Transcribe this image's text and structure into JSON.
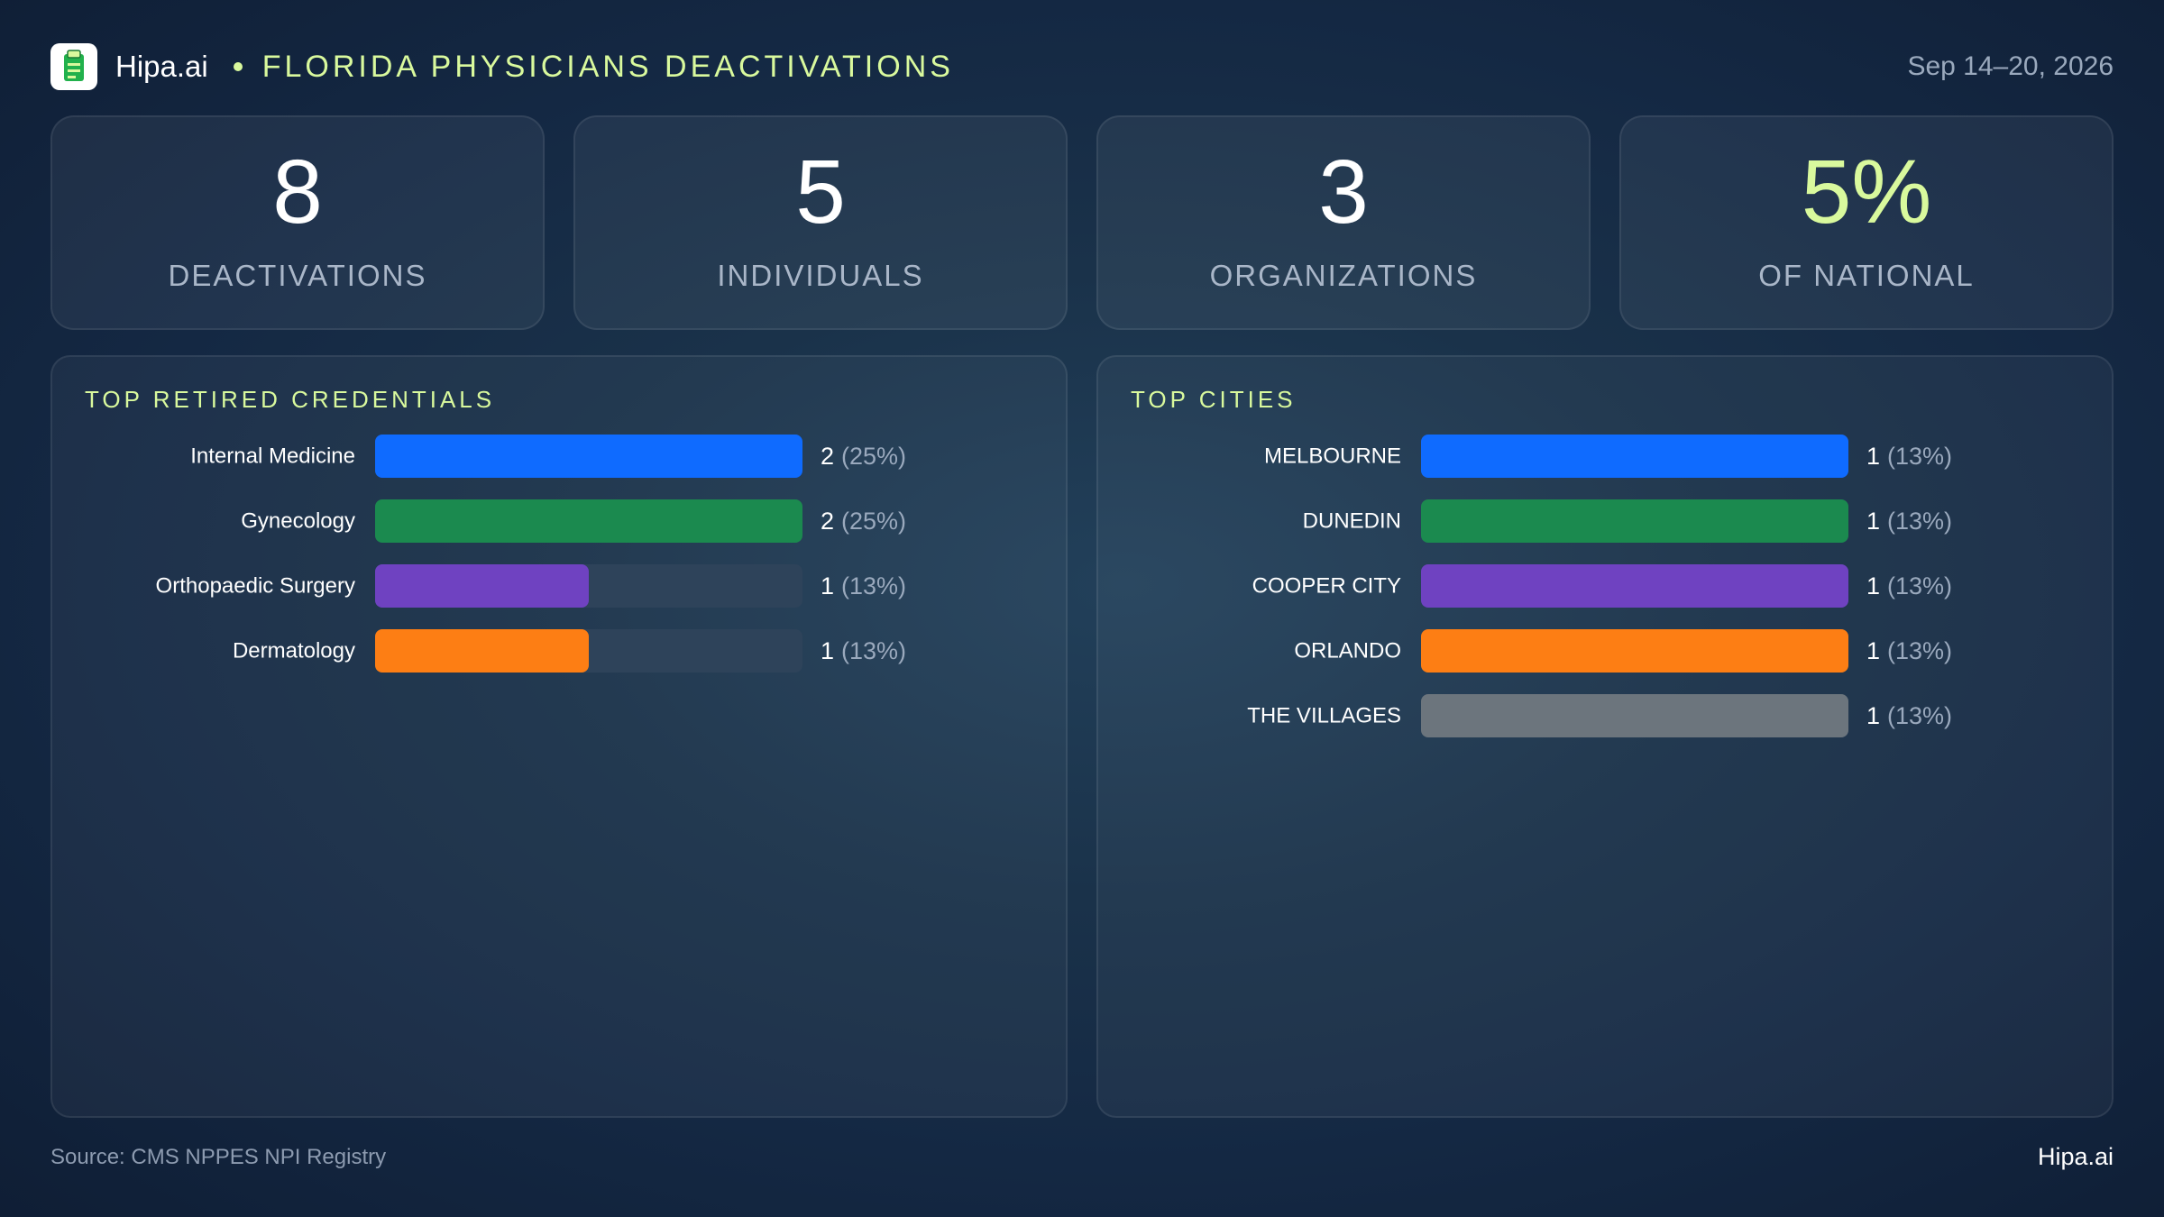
{
  "header": {
    "brand": "Hipa.ai",
    "title": "FLORIDA PHYSICIANS DEACTIVATIONS",
    "date_range": "Sep 14–20, 2026",
    "logo_icon": "clipboard-icon"
  },
  "stats": [
    {
      "value": "8",
      "label": "DEACTIVATIONS"
    },
    {
      "value": "5",
      "label": "INDIVIDUALS"
    },
    {
      "value": "3",
      "label": "ORGANIZATIONS"
    },
    {
      "value": "5%",
      "label": "OF NATIONAL"
    }
  ],
  "colors": {
    "accent": "#d9f99d",
    "blue": "#0f6bff",
    "green": "#1b8a4f",
    "purple": "#6f42c1",
    "orange": "#fd7e14",
    "gray": "#6c757d",
    "track": "#2e435a"
  },
  "chart_data": [
    {
      "type": "bar",
      "orientation": "horizontal",
      "title": "TOP RETIRED CREDENTIALS",
      "categories": [
        "Internal Medicine",
        "Gynecology",
        "Orthopaedic Surgery",
        "Dermatology"
      ],
      "values": [
        2,
        2,
        1,
        1
      ],
      "value_labels": [
        "2",
        "2",
        "1",
        "1"
      ],
      "percent_labels": [
        "(25%)",
        "(25%)",
        "(13%)",
        "(13%)"
      ],
      "bar_colors": [
        "#0f6bff",
        "#1b8a4f",
        "#6f42c1",
        "#fd7e14"
      ],
      "xlim": [
        0,
        2
      ],
      "grid": false
    },
    {
      "type": "bar",
      "orientation": "horizontal",
      "title": "TOP CITIES",
      "categories": [
        "MELBOURNE",
        "DUNEDIN",
        "COOPER CITY",
        "ORLANDO",
        "THE VILLAGES"
      ],
      "values": [
        1,
        1,
        1,
        1,
        1
      ],
      "value_labels": [
        "1",
        "1",
        "1",
        "1",
        "1"
      ],
      "percent_labels": [
        "(13%)",
        "(13%)",
        "(13%)",
        "(13%)",
        "(13%)"
      ],
      "bar_colors": [
        "#0f6bff",
        "#1b8a4f",
        "#6f42c1",
        "#fd7e14",
        "#6c757d"
      ],
      "xlim": [
        0,
        1
      ],
      "grid": false
    }
  ],
  "footer": {
    "source": "Source: CMS NPPES NPI Registry",
    "brand": "Hipa.ai"
  }
}
